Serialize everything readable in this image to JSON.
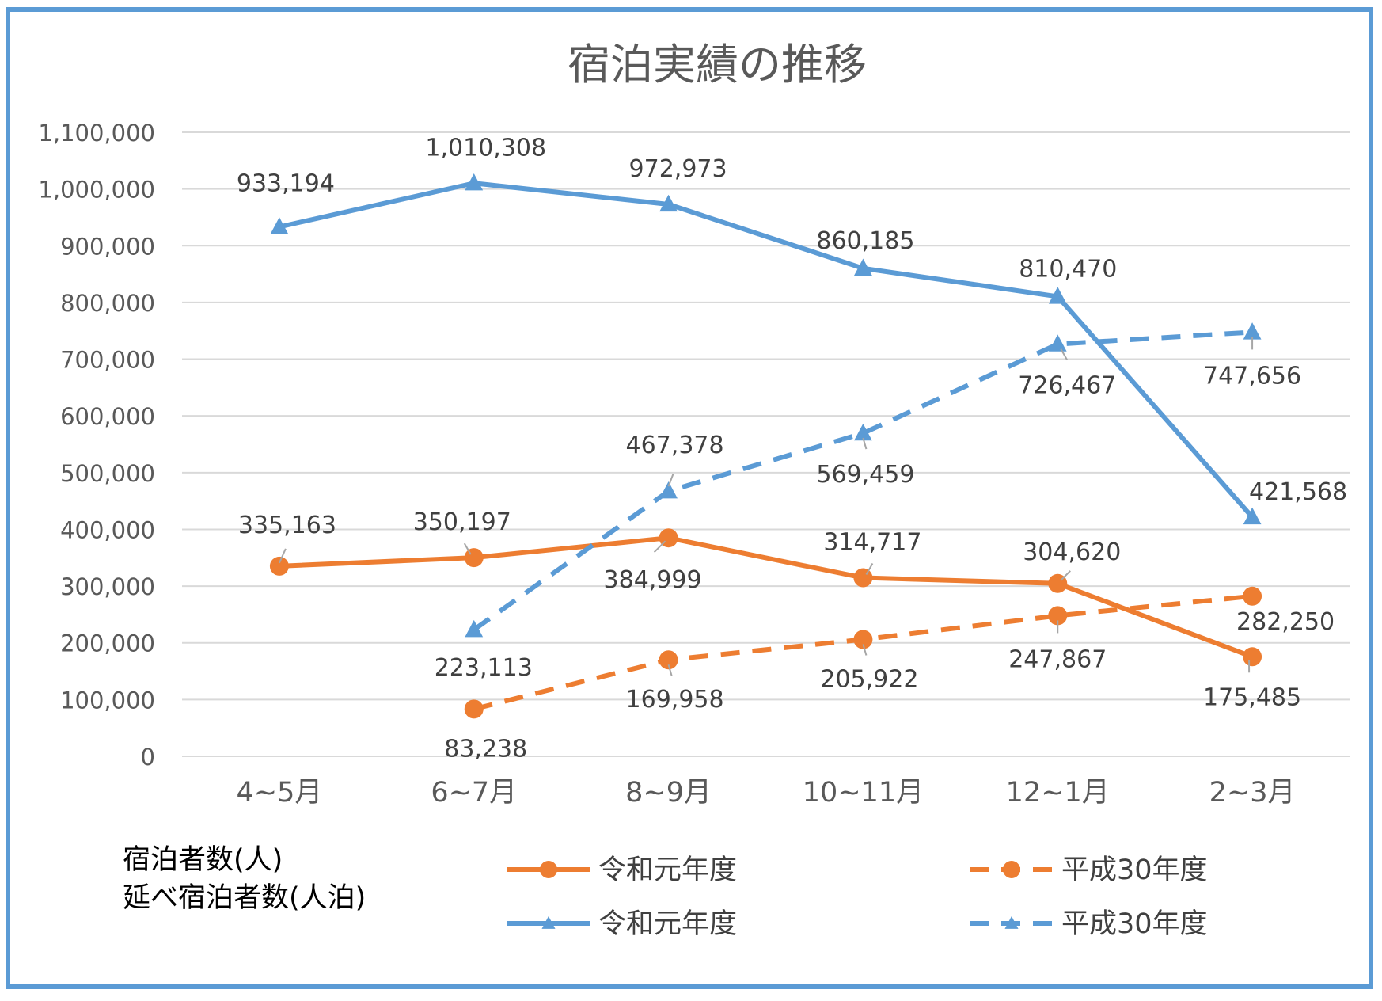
{
  "chart_data": {
    "type": "line",
    "title": "宿泊実績の推移",
    "categories": [
      "4~5月",
      "6~7月",
      "8~9月",
      "10~11月",
      "12~1月",
      "2~3月"
    ],
    "ylim": [
      0,
      1100000
    ],
    "yticks": [
      "0",
      "100,000",
      "200,000",
      "300,000",
      "400,000",
      "500,000",
      "600,000",
      "700,000",
      "800,000",
      "900,000",
      "1,000,000",
      "1,100,000"
    ],
    "grid": true,
    "legend_position": "bottom",
    "series_descriptions": [
      "宿泊者数(人)",
      "延べ宿泊者数(人泊)"
    ],
    "series": [
      {
        "name": "令和元年度",
        "color": "#ed7d31",
        "dash": false,
        "marker": "circle",
        "values": [
          335163,
          350197,
          384999,
          314717,
          304620,
          175485
        ],
        "labels": [
          "335,163",
          "350,197",
          "384,999",
          "314,717",
          "304,620",
          "175,485"
        ]
      },
      {
        "name": "平成30年度",
        "color": "#ed7d31",
        "dash": true,
        "marker": "circle",
        "values": [
          null,
          83238,
          169958,
          205922,
          247867,
          282250
        ],
        "labels": [
          "",
          "83,238",
          "169,958",
          "205,922",
          "247,867",
          "282,250"
        ]
      },
      {
        "name": "令和元年度",
        "color": "#5b9bd5",
        "dash": false,
        "marker": "triangle",
        "values": [
          933194,
          1010308,
          972973,
          860185,
          810470,
          421568
        ],
        "labels": [
          "933,194",
          "1,010,308",
          "972,973",
          "860,185",
          "810,470",
          "421,568"
        ]
      },
      {
        "name": "平成30年度",
        "color": "#5b9bd5",
        "dash": true,
        "marker": "triangle",
        "values": [
          null,
          223113,
          467378,
          569459,
          726467,
          747656
        ],
        "labels": [
          "",
          "223,113",
          "467,378",
          "569,459",
          "726,467",
          "747,656"
        ]
      }
    ]
  }
}
